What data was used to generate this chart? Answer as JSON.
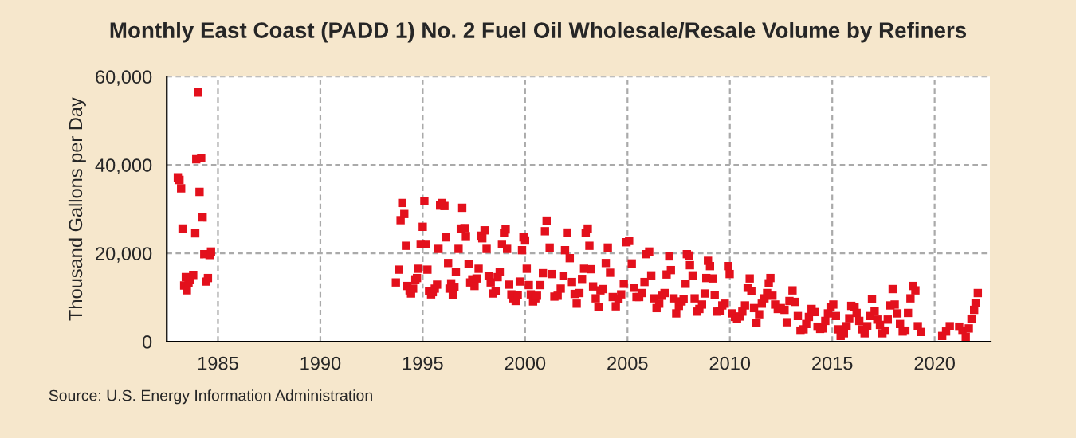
{
  "chart_data": {
    "type": "scatter",
    "title": "Monthly East Coast (PADD 1) No. 2 Fuel Oil Wholesale/Resale Volume by Refiners",
    "ylabel": "Thousand Gallons per Day",
    "annotations": [
      "Source: U.S. Energy Information Administration"
    ],
    "xlim": [
      1982.5,
      2022.7
    ],
    "xticks": [
      1985,
      1990,
      1995,
      2000,
      2005,
      2010,
      2015,
      2020
    ],
    "ylim": [
      0,
      60000
    ],
    "yticks": [
      {
        "value": 0,
        "label": "0"
      },
      {
        "value": 20000,
        "label": "20,000"
      },
      {
        "value": 40000,
        "label": "40,000"
      },
      {
        "value": 60000,
        "label": "60,000"
      }
    ],
    "grid": true,
    "marker": "square",
    "legend": false,
    "series": [
      {
        "color": "#e3101c",
        "x": [
          1983.04,
          1983.12,
          1983.2,
          1983.27,
          1983.35,
          1983.43,
          1983.48,
          1983.56,
          1983.63,
          1983.79,
          1983.89,
          1983.94,
          1984.02,
          1984.1,
          1984.18,
          1984.25,
          1984.33,
          1984.43,
          1984.51,
          1984.59,
          1984.66,
          1993.69,
          1993.84,
          1993.92,
          1994.0,
          1994.1,
          1994.18,
          1994.25,
          1994.36,
          1994.43,
          1994.53,
          1994.64,
          1994.72,
          1994.79,
          1994.9,
          1995.0,
          1995.08,
          1995.15,
          1995.23,
          1995.31,
          1995.41,
          1995.49,
          1995.59,
          1995.7,
          1995.77,
          1995.85,
          1995.95,
          1996.06,
          1996.13,
          1996.24,
          1996.31,
          1996.39,
          1996.47,
          1996.55,
          1996.62,
          1996.75,
          1996.86,
          1996.93,
          1997.04,
          1997.11,
          1997.24,
          1997.32,
          1997.42,
          1997.53,
          1997.63,
          1997.73,
          1997.84,
          1997.91,
          1998.02,
          1998.12,
          1998.22,
          1998.32,
          1998.43,
          1998.56,
          1998.66,
          1998.76,
          1998.87,
          1998.97,
          1999.05,
          1999.12,
          1999.22,
          1999.33,
          1999.43,
          1999.54,
          1999.64,
          1999.74,
          1999.85,
          1999.92,
          2000.0,
          2000.08,
          2000.18,
          2000.28,
          2000.39,
          2000.5,
          2000.58,
          2000.74,
          2000.87,
          2000.97,
          2001.05,
          2001.2,
          2001.3,
          2001.43,
          2001.59,
          2001.74,
          2001.87,
          2001.95,
          2002.05,
          2002.18,
          2002.29,
          2002.42,
          2002.52,
          2002.65,
          2002.78,
          2002.88,
          2002.96,
          2003.06,
          2003.14,
          2003.22,
          2003.32,
          2003.45,
          2003.58,
          2003.68,
          2003.81,
          2003.94,
          2004.04,
          2004.15,
          2004.28,
          2004.43,
          2004.56,
          2004.69,
          2004.82,
          2004.95,
          2005.08,
          2005.21,
          2005.31,
          2005.44,
          2005.57,
          2005.7,
          2005.83,
          2005.9,
          2006.06,
          2006.16,
          2006.29,
          2006.42,
          2006.55,
          2006.68,
          2006.81,
          2006.91,
          2007.04,
          2007.12,
          2007.25,
          2007.38,
          2007.51,
          2007.64,
          2007.74,
          2007.84,
          2007.9,
          2008.0,
          2008.05,
          2008.18,
          2008.28,
          2008.39,
          2008.51,
          2008.64,
          2008.77,
          2008.85,
          2008.93,
          2009.03,
          2009.16,
          2009.26,
          2009.37,
          2009.5,
          2009.63,
          2009.75,
          2009.91,
          2009.99,
          2010.12,
          2010.25,
          2010.35,
          2010.48,
          2010.61,
          2010.74,
          2010.87,
          2010.97,
          2011.05,
          2011.18,
          2011.3,
          2011.43,
          2011.56,
          2011.69,
          2011.82,
          2011.9,
          2011.98,
          2012.08,
          2012.21,
          2012.34,
          2012.49,
          2012.67,
          2012.78,
          2012.91,
          2013.06,
          2013.19,
          2013.32,
          2013.45,
          2013.6,
          2013.73,
          2013.86,
          2013.99,
          2014.15,
          2014.28,
          2014.41,
          2014.53,
          2014.66,
          2014.79,
          2014.92,
          2015.05,
          2015.18,
          2015.28,
          2015.41,
          2015.57,
          2015.7,
          2015.83,
          2015.93,
          2016.09,
          2016.19,
          2016.32,
          2016.45,
          2016.58,
          2016.71,
          2016.84,
          2016.94,
          2017.07,
          2017.2,
          2017.33,
          2017.45,
          2017.58,
          2017.71,
          2017.84,
          2017.95,
          2018.05,
          2018.18,
          2018.31,
          2018.44,
          2018.57,
          2018.7,
          2018.82,
          2018.95,
          2019.06,
          2019.18,
          2019.32,
          2020.37,
          2020.56,
          2020.74,
          2021.2,
          2021.36,
          2021.52,
          2021.67,
          2021.8,
          2021.93,
          2022.0,
          2022.11
        ],
        "values": [
          37200,
          36600,
          34700,
          25600,
          12700,
          14600,
          11600,
          13400,
          13900,
          15100,
          24500,
          41300,
          56400,
          33900,
          41500,
          28100,
          19800,
          13600,
          14400,
          19600,
          20400,
          13400,
          16300,
          27500,
          31400,
          28900,
          21700,
          12600,
          11600,
          10900,
          12000,
          14100,
          14400,
          16500,
          22100,
          26000,
          31800,
          22100,
          16300,
          11400,
          10700,
          11200,
          12000,
          12900,
          21000,
          30800,
          31400,
          30700,
          23600,
          17800,
          12000,
          13200,
          10600,
          12400,
          15800,
          21000,
          25600,
          30300,
          25700,
          23900,
          17600,
          13400,
          14100,
          12600,
          14300,
          16500,
          24000,
          23400,
          25200,
          21000,
          14900,
          13400,
          10900,
          11500,
          14600,
          15800,
          22100,
          24600,
          25400,
          21000,
          12900,
          10700,
          9800,
          9200,
          10600,
          13600,
          20700,
          23600,
          22900,
          16500,
          12800,
          10700,
          9100,
          9800,
          10400,
          12800,
          15500,
          25000,
          27400,
          21300,
          15300,
          10200,
          10400,
          12000,
          14900,
          20700,
          24700,
          18900,
          13500,
          10800,
          8600,
          11000,
          14200,
          16500,
          24600,
          25600,
          21700,
          16400,
          12500,
          9800,
          7900,
          11600,
          11900,
          17800,
          21300,
          15600,
          10100,
          8000,
          9600,
          10700,
          13100,
          22500,
          22800,
          17700,
          12200,
          10100,
          10100,
          11000,
          13500,
          19800,
          20400,
          15000,
          9800,
          7600,
          8600,
          10400,
          11000,
          15200,
          19300,
          16200,
          9800,
          6400,
          8100,
          9100,
          9700,
          13100,
          19800,
          19500,
          17300,
          15000,
          9800,
          6800,
          7400,
          8400,
          10900,
          14400,
          18300,
          17100,
          14300,
          10500,
          6800,
          7000,
          8200,
          8600,
          17100,
          15300,
          6400,
          5600,
          5200,
          5700,
          6800,
          8200,
          12200,
          14300,
          11400,
          7600,
          4200,
          6200,
          8600,
          9800,
          11000,
          13200,
          14400,
          10400,
          8400,
          7400,
          7600,
          7200,
          4400,
          9200,
          11600,
          9000,
          5800,
          2500,
          2800,
          4000,
          5600,
          7400,
          6700,
          3400,
          2900,
          3000,
          4700,
          6400,
          7800,
          8400,
          5800,
          2800,
          1300,
          1900,
          3500,
          5300,
          8100,
          7900,
          6500,
          4700,
          2800,
          1900,
          3500,
          5800,
          9600,
          7000,
          5000,
          3800,
          1900,
          2500,
          5000,
          8200,
          11900,
          8400,
          6400,
          4000,
          2300,
          2500,
          6500,
          9800,
          12600,
          11600,
          3500,
          2200,
          1300,
          2300,
          3500,
          3400,
          2500,
          1100,
          3000,
          5200,
          7200,
          8800,
          11000
        ]
      }
    ]
  }
}
